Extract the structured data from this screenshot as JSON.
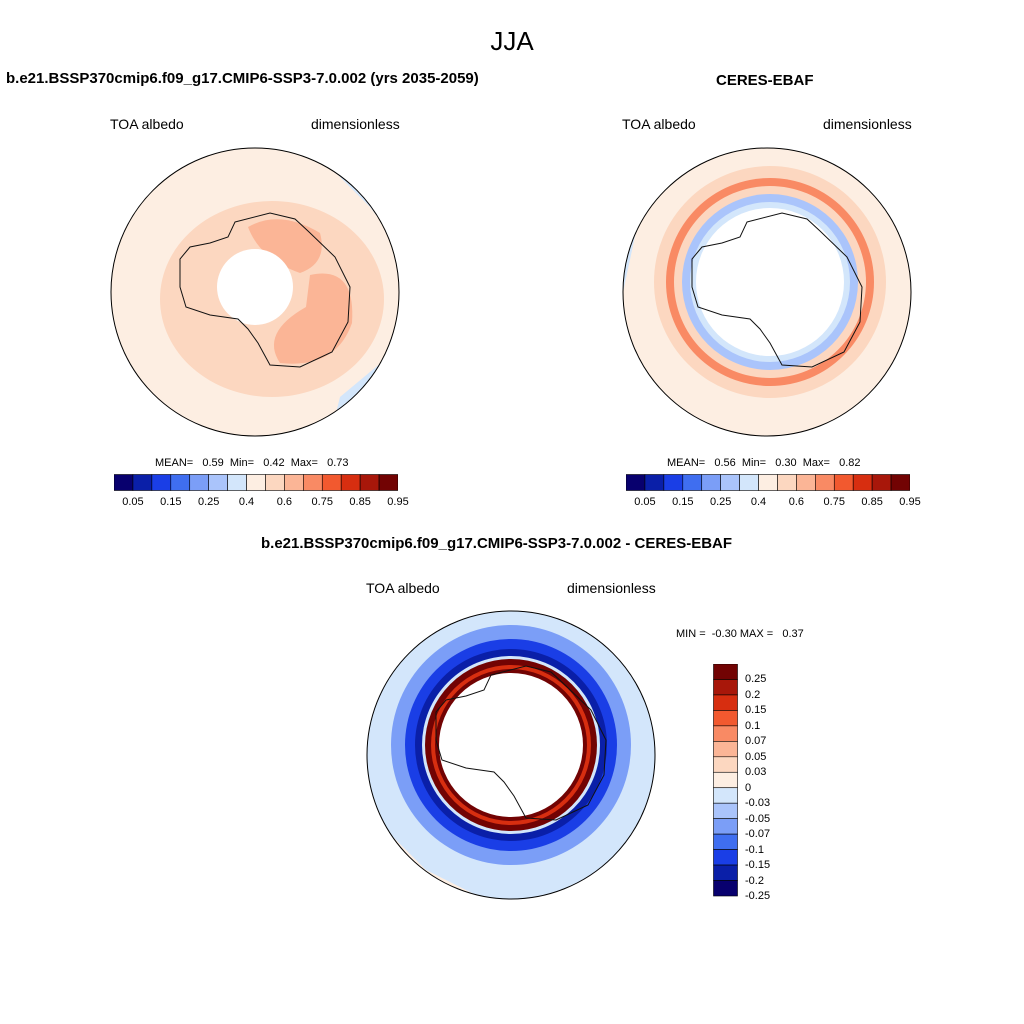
{
  "season": "JJA",
  "panels": {
    "model": {
      "title": "b.e21.BSSP370cmip6.f09_g17.CMIP6-SSP3-7.0.002 (yrs 2035-2059)",
      "left_label": "TOA albedo",
      "right_label": "dimensionless",
      "stats": "MEAN=   0.59  Min=   0.42  Max=   0.73"
    },
    "obs": {
      "title": "CERES-EBAF",
      "left_label": "TOA albedo",
      "right_label": "dimensionless",
      "stats": "MEAN=   0.56  Min=   0.30  Max=   0.82"
    },
    "diff": {
      "title": "b.e21.BSSP370cmip6.f09_g17.CMIP6-SSP3-7.0.002 - CERES-EBAF",
      "left_label": "TOA albedo",
      "right_label": "dimensionless",
      "stats": "MIN =  -0.30 MAX =   0.37"
    }
  },
  "chart_data": [
    {
      "type": "heatmap",
      "projection": "south-polar-stereographic",
      "title": "b.e21.BSSP370cmip6.f09_g17.CMIP6-SSP3-7.0.002 (yrs 2035-2059)",
      "variable": "TOA albedo",
      "units": "dimensionless",
      "mean": 0.59,
      "min": 0.42,
      "max": 0.73,
      "colorbar_ticks": [
        "0.05",
        "0.15",
        "0.25",
        "0.4",
        "0.6",
        "0.75",
        "0.85",
        "0.95"
      ]
    },
    {
      "type": "heatmap",
      "projection": "south-polar-stereographic",
      "title": "CERES-EBAF",
      "variable": "TOA albedo",
      "units": "dimensionless",
      "mean": 0.56,
      "min": 0.3,
      "max": 0.82,
      "colorbar_ticks": [
        "0.05",
        "0.15",
        "0.25",
        "0.4",
        "0.6",
        "0.75",
        "0.85",
        "0.95"
      ]
    },
    {
      "type": "heatmap",
      "projection": "south-polar-stereographic",
      "title": "b.e21.BSSP370cmip6.f09_g17.CMIP6-SSP3-7.0.002 - CERES-EBAF",
      "variable": "TOA albedo",
      "units": "dimensionless",
      "min": -0.3,
      "max": 0.37,
      "colorbar_ticks": [
        "0.25",
        "0.2",
        "0.15",
        "0.1",
        "0.07",
        "0.05",
        "0.03",
        "0",
        "-0.03",
        "-0.05",
        "-0.07",
        "-0.1",
        "-0.15",
        "-0.2",
        "-0.25"
      ]
    }
  ],
  "colors": {
    "albedo_scale": [
      "#08006e",
      "#0a1fa8",
      "#1a3ee6",
      "#3f6ef0",
      "#7b9ef7",
      "#aac4fb",
      "#d3e6fb",
      "#fdeee2",
      "#fcd7c0",
      "#fbb596",
      "#f98a64",
      "#f2592f",
      "#d72e10",
      "#a8170a",
      "#720303"
    ],
    "diff_scale": [
      "#720303",
      "#a8170a",
      "#d72e10",
      "#f2592f",
      "#f98a64",
      "#fbb596",
      "#fcd7c0",
      "#fdeee2",
      "#d3e6fb",
      "#aac4fb",
      "#7b9ef7",
      "#3f6ef0",
      "#1a3ee6",
      "#0a1fa8",
      "#08006e"
    ]
  }
}
